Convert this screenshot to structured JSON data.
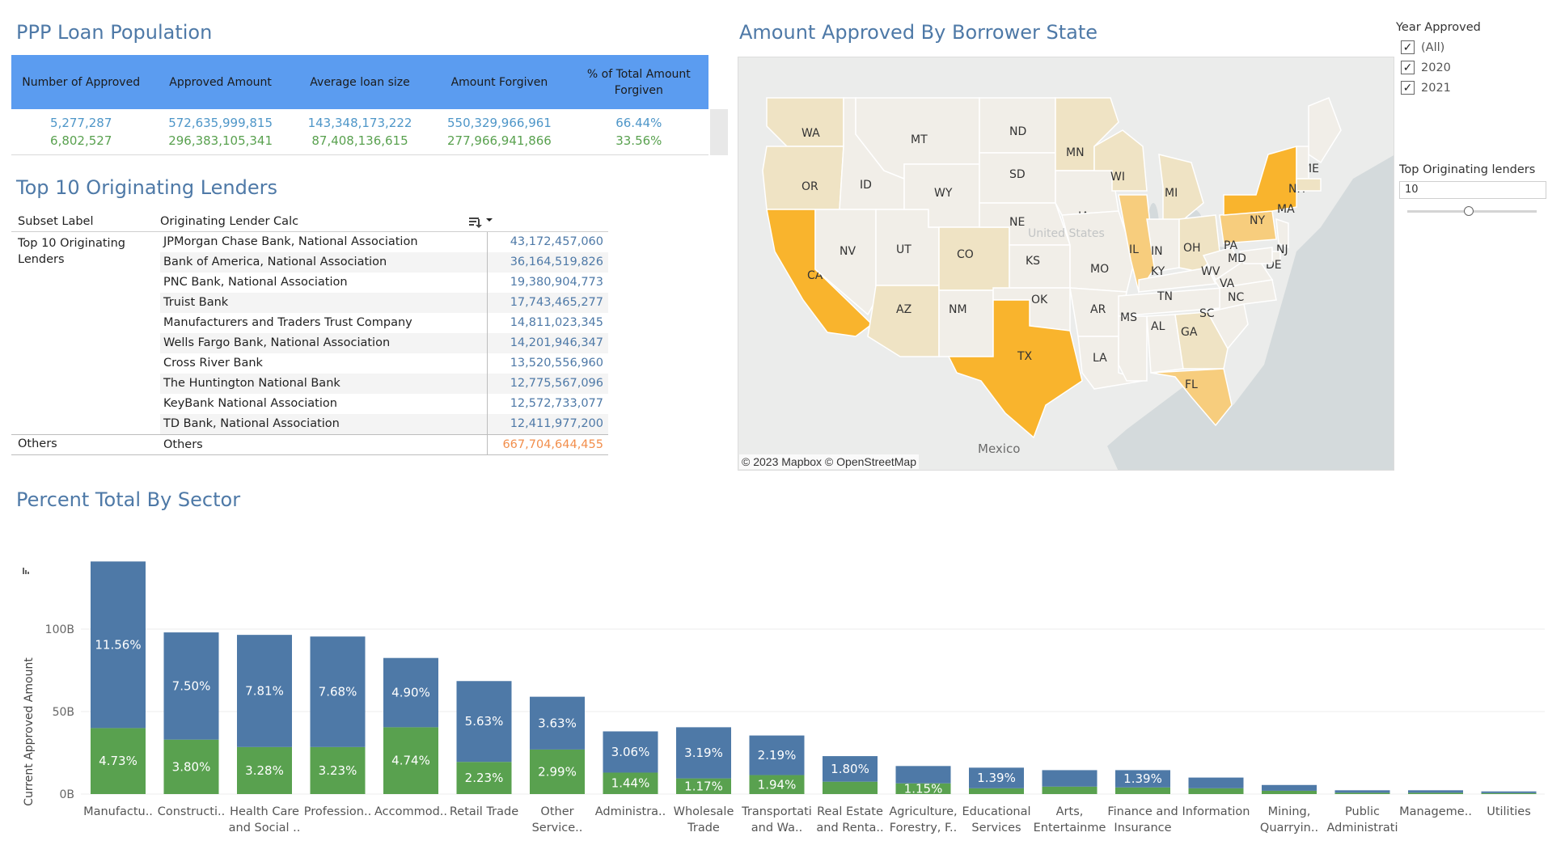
{
  "titles": {
    "kpi": "PPP Loan Population",
    "lenders": "Top 10 Originating Lenders",
    "map": "Amount Approved By Borrower State",
    "sector": "Percent Total By Sector"
  },
  "kpi": {
    "headers": [
      "Number of Approved",
      "Approved Amount",
      "Average loan size",
      "Amount Forgiven",
      "% of Total Amount Forgiven"
    ],
    "rows": [
      [
        "5,277,287",
        "572,635,999,815",
        "143,348,173,222",
        "550,329,966,961",
        "66.44%"
      ],
      [
        "6,802,527",
        "296,383,105,341",
        "87,408,136,615",
        "277,966,941,866",
        "33.56%"
      ]
    ]
  },
  "lenders": {
    "col_subset": "Subset Label",
    "col_lender": "Originating Lender Calc",
    "subset_label": "Top 10 Originating Lenders",
    "rows": [
      {
        "name": "JPMorgan Chase Bank, National Association",
        "value": "43,172,457,060"
      },
      {
        "name": "Bank of America, National Association",
        "value": "36,164,519,826"
      },
      {
        "name": "PNC Bank, National Association",
        "value": "19,380,904,773"
      },
      {
        "name": "Truist Bank",
        "value": "17,743,465,277"
      },
      {
        "name": "Manufacturers and Traders Trust Company",
        "value": "14,811,023,345"
      },
      {
        "name": "Wells Fargo Bank, National Association",
        "value": "14,201,946,347"
      },
      {
        "name": "Cross River Bank",
        "value": "13,520,556,960"
      },
      {
        "name": "The Huntington National Bank",
        "value": "12,775,567,096"
      },
      {
        "name": "KeyBank National Association",
        "value": "12,572,733,077"
      },
      {
        "name": "TD Bank, National Association",
        "value": "12,411,977,200"
      }
    ],
    "others_subset": "Others",
    "others_name": "Others",
    "others_value": "667,704,644,455"
  },
  "map": {
    "credit": "© 2023 Mapbox  © OpenStreetMap",
    "country_label": "Mexico",
    "us_label": "United States",
    "states": [
      "WA",
      "OR",
      "CA",
      "ID",
      "NV",
      "UT",
      "AZ",
      "MT",
      "WY",
      "CO",
      "NM",
      "ND",
      "SD",
      "NE",
      "KS",
      "OK",
      "TX",
      "MN",
      "IA",
      "MO",
      "AR",
      "LA",
      "WI",
      "IL",
      "MI",
      "IN",
      "OH",
      "KY",
      "TN",
      "MS",
      "AL",
      "GA",
      "FL",
      "SC",
      "NC",
      "VA",
      "WV",
      "PA",
      "NY",
      "NJ",
      "DE",
      "MD",
      "ME",
      "NH",
      "MA"
    ],
    "colors": {
      "high": "#f9b42d",
      "mid": "#f7cd7d",
      "low": "#efe3c4",
      "base": "#f1eee8",
      "water": "#d4dadc",
      "land": "#ebeceb"
    }
  },
  "filters": {
    "year_title": "Year Approved",
    "year_options": [
      "(All)",
      "2020",
      "2021"
    ],
    "lender_param_title": "Top Originating lenders",
    "lender_param_value": "10"
  },
  "chart_data": {
    "type": "bar",
    "stacked": true,
    "ylabel": "Current Approved Amount",
    "yticks": [
      "0B",
      "50B",
      "100B"
    ],
    "ylim": [
      0,
      140
    ],
    "categories": [
      [
        "Manufactu.."
      ],
      [
        "Constructi.."
      ],
      [
        "Health Care",
        "and Social .."
      ],
      [
        "Profession.."
      ],
      [
        "Accommod.."
      ],
      [
        "Retail Trade"
      ],
      [
        "Other",
        "Service.."
      ],
      [
        "Administra.."
      ],
      [
        "Wholesale",
        "Trade"
      ],
      [
        "Transportati",
        "and Wa.."
      ],
      [
        "Real Estate",
        "and Renta.."
      ],
      [
        "Agriculture,",
        "Forestry, F.."
      ],
      [
        "Educational",
        "Services"
      ],
      [
        "Arts,",
        "Entertainme"
      ],
      [
        "Finance and",
        "Insurance"
      ],
      [
        "Information"
      ],
      [
        "Mining,",
        "Quarryin.."
      ],
      [
        "Public",
        "Administrati"
      ],
      [
        "Manageme.."
      ],
      [
        "Utilities"
      ]
    ],
    "series": [
      {
        "color": "#59a14f",
        "values": [
          40,
          33,
          28.5,
          28.5,
          40.5,
          19.5,
          27,
          13,
          9.5,
          11.5,
          7.5,
          6.5,
          3.5,
          4.5,
          4,
          3.5,
          2,
          0.8,
          0.8,
          0.6
        ],
        "labels": [
          "4.73%",
          "3.80%",
          "3.28%",
          "3.23%",
          "4.74%",
          "2.23%",
          "2.99%",
          "1.44%",
          "1.17%",
          "1.94%",
          "",
          "1.15%",
          "",
          "",
          "",
          "",
          "",
          "",
          "",
          ""
        ]
      },
      {
        "color": "#4e79a7",
        "values": [
          101,
          65,
          68,
          67,
          42,
          49,
          32,
          25,
          31,
          24,
          15.5,
          10.5,
          12.5,
          10,
          10.5,
          6.5,
          3.5,
          1.5,
          1.5,
          1
        ],
        "labels": [
          "11.56%",
          "7.50%",
          "7.81%",
          "7.68%",
          "4.90%",
          "5.63%",
          "3.63%",
          "3.06%",
          "3.19%",
          "2.19%",
          "1.80%",
          "",
          "1.39%",
          "",
          "1.39%",
          "",
          "",
          "",
          "",
          ""
        ]
      }
    ]
  }
}
